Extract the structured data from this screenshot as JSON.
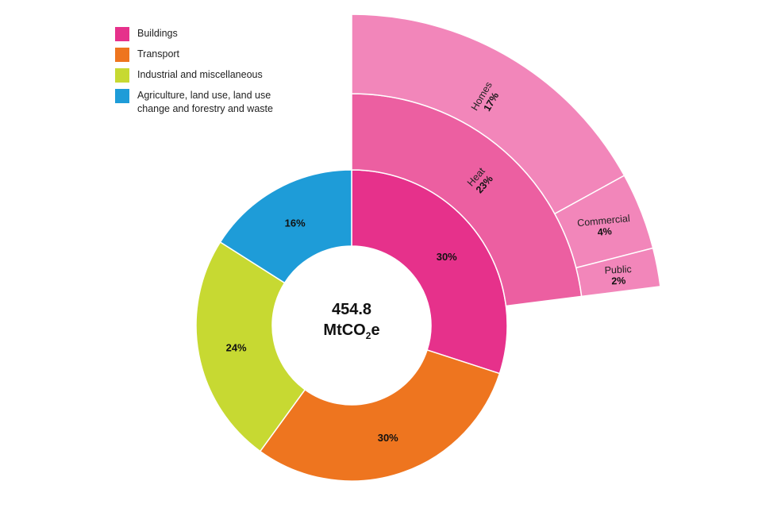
{
  "chart_data": {
    "type": "sunburst",
    "center": {
      "value": "454.8",
      "unit_main": "MtCO",
      "unit_sub": "2",
      "unit_tail": "e"
    },
    "legend": [
      {
        "label": "Buildings",
        "color": "#e6318b"
      },
      {
        "label": "Transport",
        "color": "#ee751f"
      },
      {
        "label": "Industrial and miscellaneous",
        "color": "#c7d932"
      },
      {
        "label": "Agriculture, land use, land use change and forestry and waste",
        "color": "#1e9cd8"
      }
    ],
    "inner": [
      {
        "name": "Buildings",
        "value": 30,
        "label": "30%",
        "color": "#e6318b"
      },
      {
        "name": "Transport",
        "value": 30,
        "label": "30%",
        "color": "#ee751f"
      },
      {
        "name": "Industrial and miscellaneous",
        "value": 24,
        "label": "24%",
        "color": "#c7d932"
      },
      {
        "name": "Agriculture, land use, land use change and forestry and waste",
        "value": 16,
        "label": "16%",
        "color": "#1e9cd8"
      }
    ],
    "middle": [
      {
        "name": "Heat",
        "value": 23,
        "label": "23%",
        "color": "#ec5fa1"
      }
    ],
    "outer": [
      {
        "name": "Homes",
        "value": 17,
        "label": "17%",
        "color": "#f286ba"
      },
      {
        "name": "Commercial",
        "value": 4,
        "label": "4%",
        "color": "#f286ba"
      },
      {
        "name": "Public",
        "value": 2,
        "label": "2%",
        "color": "#f286ba"
      }
    ]
  }
}
